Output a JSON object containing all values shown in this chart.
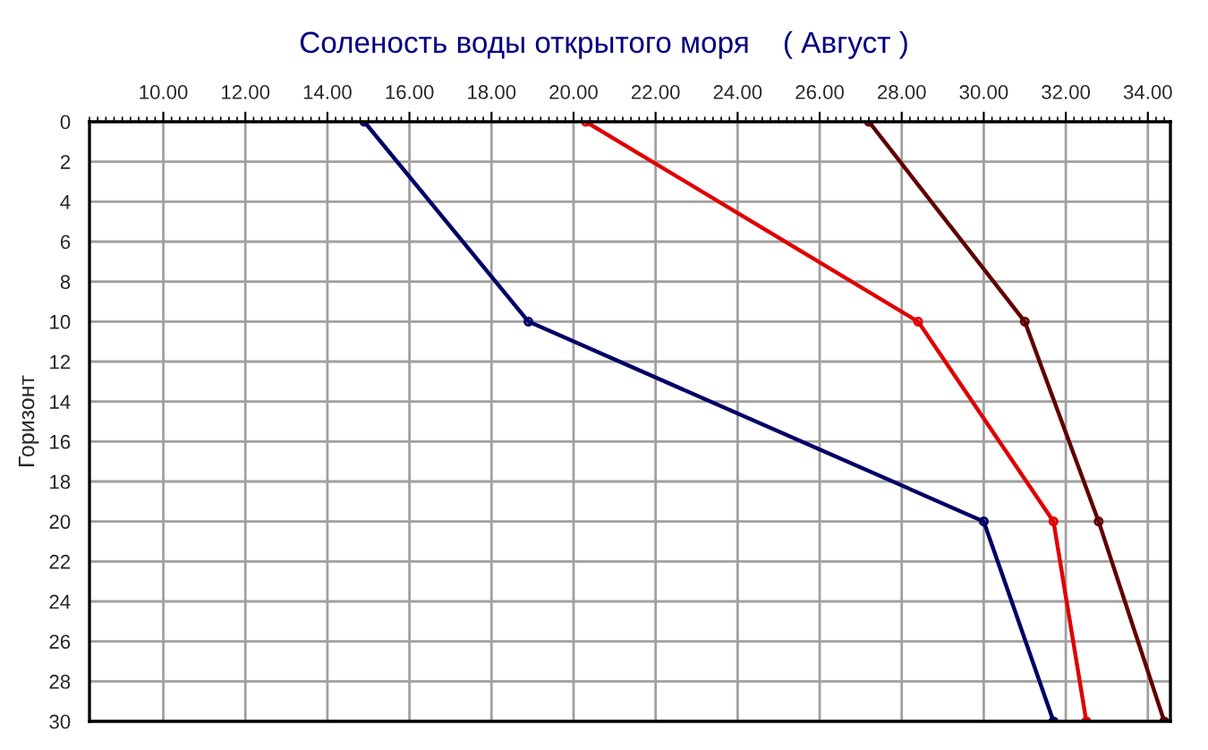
{
  "chart_data": {
    "type": "line",
    "title": "Соленость воды открытого моря    ( Август )",
    "ylabel": "Горизонт",
    "orientation": "horizontal",
    "x": [
      0,
      10,
      20,
      30
    ],
    "series": [
      {
        "color": "#000066",
        "values": [
          14.9,
          18.9,
          30.0,
          31.7
        ]
      },
      {
        "color": "#e00000",
        "values": [
          20.3,
          28.4,
          31.7,
          32.5
        ]
      },
      {
        "color": "#600000",
        "values": [
          27.2,
          31.0,
          32.8,
          34.4
        ]
      }
    ],
    "xlim": [
      8.2,
      34.55
    ],
    "xticks": [
      {
        "value": 10,
        "label": "10.00"
      },
      {
        "value": 12,
        "label": "12.00"
      },
      {
        "value": 14,
        "label": "14.00"
      },
      {
        "value": 16,
        "label": "16.00"
      },
      {
        "value": 18,
        "label": "18.00"
      },
      {
        "value": 20,
        "label": "20.00"
      },
      {
        "value": 22,
        "label": "22.00"
      },
      {
        "value": 24,
        "label": "24.00"
      },
      {
        "value": 26,
        "label": "26.00"
      },
      {
        "value": 28,
        "label": "28.00"
      },
      {
        "value": 30,
        "label": "30.00"
      },
      {
        "value": 32,
        "label": "32.00"
      },
      {
        "value": 34,
        "label": "34.00"
      }
    ],
    "ylim": [
      30,
      0
    ],
    "yticks": [
      0,
      2,
      4,
      6,
      8,
      10,
      12,
      14,
      16,
      18,
      20,
      22,
      24,
      26,
      28,
      30
    ],
    "grid": true,
    "marker": "circle",
    "line_style": "solid",
    "legend": false
  }
}
